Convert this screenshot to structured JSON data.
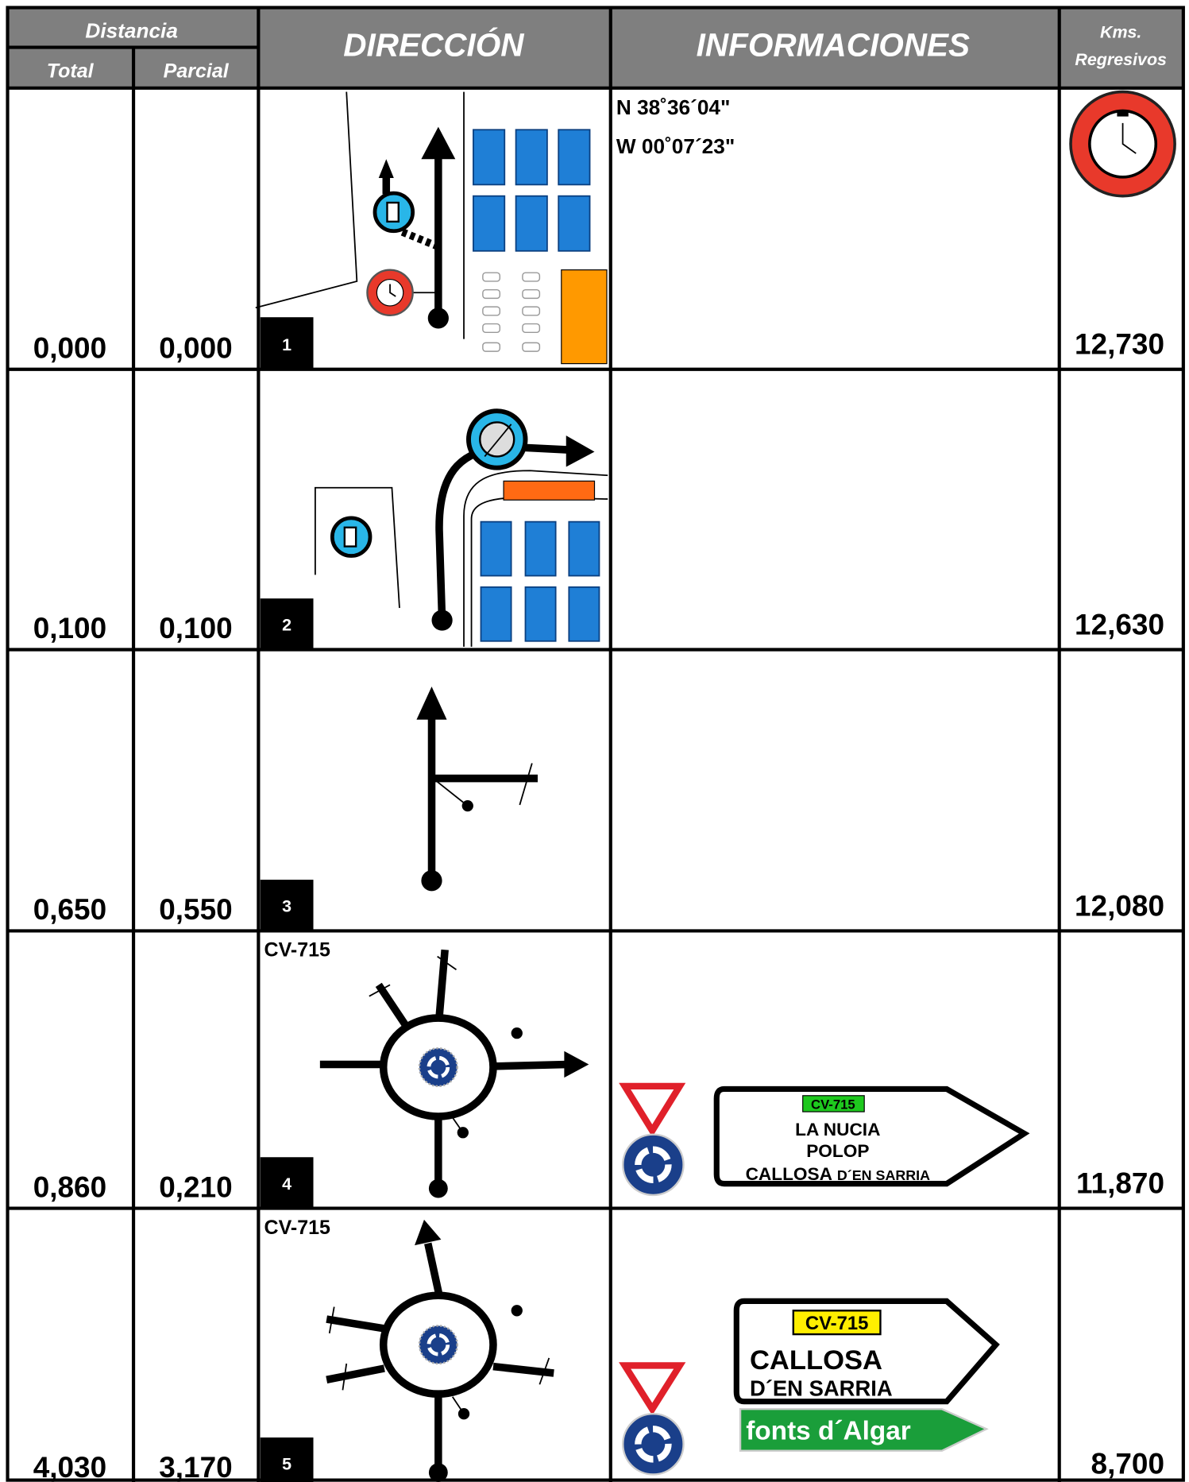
{
  "header": {
    "distancia": "Distancia",
    "total": "Total",
    "parcial": "Parcial",
    "direccion": "DIRECCIÓN",
    "informaciones": "INFORMACIONES",
    "kms": [
      "Kms.",
      "Regresivos"
    ]
  },
  "rows": [
    {
      "total": "0,000",
      "parcial": "0,000",
      "step": "1",
      "kms": "12,730",
      "info": [
        "N 38˚36´04\"",
        "W 00˚07´23\""
      ]
    },
    {
      "total": "0,100",
      "parcial": "0,100",
      "step": "2",
      "kms": "12,630"
    },
    {
      "total": "0,650",
      "parcial": "0,550",
      "step": "3",
      "kms": "12,080"
    },
    {
      "total": "0,860",
      "parcial": "0,210",
      "step": "4",
      "kms": "11,870",
      "road": "CV-715",
      "sign": [
        "CV-715",
        "LA NUCIA",
        "POLOP",
        "CALLOSA",
        "D´EN SARRIA"
      ]
    },
    {
      "total": "4,030",
      "parcial": "3,170",
      "step": "5",
      "kms": "8,700",
      "road": "CV-715",
      "sign": [
        "CV-715",
        "CALLOSA",
        "D´EN SARRIA"
      ],
      "sign2": "fonts d´Algar"
    }
  ]
}
